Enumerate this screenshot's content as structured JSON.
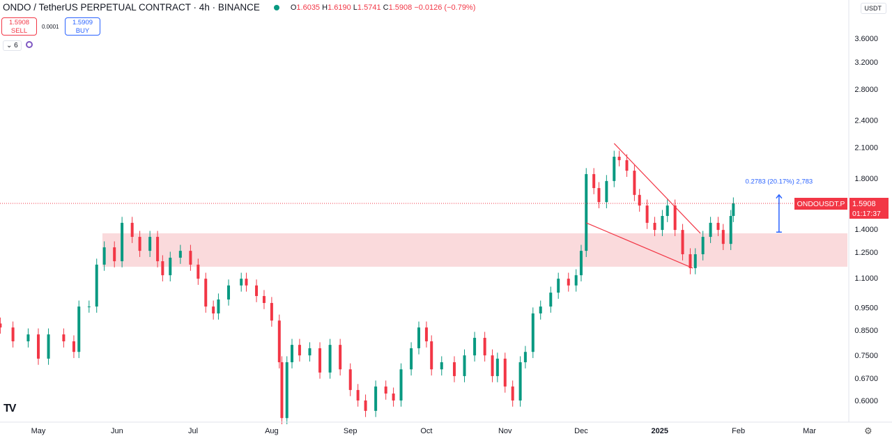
{
  "header": {
    "symbol_title": "ONDO / TetherUS PERPETUAL CONTRACT · 4h · BINANCE",
    "open_label": "O",
    "open": "1.6035",
    "high_label": "H",
    "high": "1.6190",
    "low_label": "L",
    "low": "1.5741",
    "close_label": "C",
    "close": "1.5908",
    "change": "−0.0126 (−0.79%)",
    "status_color": "#089981"
  },
  "trade": {
    "sell_price": "1.5908",
    "sell_label": "SELL",
    "spread": "0.0001",
    "buy_price": "1.5909",
    "buy_label": "BUY"
  },
  "indicators": {
    "count_label": "6"
  },
  "currency": "USDT",
  "price_tag": {
    "symbol": "ONDOUSDT.P",
    "price": "1.5908",
    "countdown": "01:17:37"
  },
  "measure_label": "0.2783 (20.17%) 2,783",
  "colors": {
    "up": "#089981",
    "down": "#f23645",
    "zone": "#f9d3d6",
    "trendline": "#f23645",
    "measure": "#2962ff"
  },
  "chart_data": {
    "type": "candlestick",
    "scale": "log",
    "grid": false,
    "ylim": [
      0.55,
      3.8
    ],
    "y_ticks": [
      "3.6000",
      "3.2000",
      "2.8000",
      "2.4000",
      "2.1000",
      "1.8000",
      "1.4000",
      "1.2500",
      "1.1000",
      "0.9500",
      "0.8500",
      "0.7500",
      "0.6700",
      "0.6000"
    ],
    "x_ticks": [
      {
        "label": "May",
        "date": "2024-05-01"
      },
      {
        "label": "Jun",
        "date": "2024-06-01"
      },
      {
        "label": "Jul",
        "date": "2024-07-01"
      },
      {
        "label": "Aug",
        "date": "2024-08-01"
      },
      {
        "label": "Sep",
        "date": "2024-09-01"
      },
      {
        "label": "Oct",
        "date": "2024-10-01"
      },
      {
        "label": "Nov",
        "date": "2024-11-01"
      },
      {
        "label": "Dec",
        "date": "2024-12-01"
      },
      {
        "label": "2025",
        "date": "2025-01-01",
        "bold": true
      },
      {
        "label": "Feb",
        "date": "2025-02-01"
      },
      {
        "label": "Mar",
        "date": "2025-03-01"
      }
    ],
    "closes": [
      [
        "2024-04-16",
        0.861
      ],
      [
        "2024-04-21",
        0.804
      ],
      [
        "2024-04-27",
        0.832
      ],
      [
        "2024-05-01",
        0.738
      ],
      [
        "2024-05-05",
        0.832
      ],
      [
        "2024-05-11",
        0.804
      ],
      [
        "2024-05-15",
        0.763
      ],
      [
        "2024-05-17",
        0.955
      ],
      [
        "2024-05-21",
        0.955
      ],
      [
        "2024-05-24",
        1.175
      ],
      [
        "2024-05-27",
        1.28
      ],
      [
        "2024-05-31",
        1.195
      ],
      [
        "2024-06-03",
        1.445
      ],
      [
        "2024-06-07",
        1.348
      ],
      [
        "2024-06-10",
        1.258
      ],
      [
        "2024-06-14",
        1.348
      ],
      [
        "2024-06-17",
        1.195
      ],
      [
        "2024-06-19",
        1.115
      ],
      [
        "2024-06-22",
        1.216
      ],
      [
        "2024-06-26",
        1.258
      ],
      [
        "2024-06-30",
        1.175
      ],
      [
        "2024-07-03",
        1.096
      ],
      [
        "2024-07-06",
        0.955
      ],
      [
        "2024-07-09",
        0.923
      ],
      [
        "2024-07-11",
        0.989
      ],
      [
        "2024-07-15",
        1.06
      ],
      [
        "2024-07-20",
        1.096
      ],
      [
        "2024-07-22",
        1.06
      ],
      [
        "2024-07-26",
        1.006
      ],
      [
        "2024-07-29",
        0.972
      ],
      [
        "2024-08-01",
        0.891
      ],
      [
        "2024-08-04",
        0.725
      ],
      [
        "2024-08-05",
        0.55
      ],
      [
        "2024-08-07",
        0.725
      ],
      [
        "2024-08-09",
        0.79
      ],
      [
        "2024-08-12",
        0.75
      ],
      [
        "2024-08-16",
        0.777
      ],
      [
        "2024-08-20",
        0.689
      ],
      [
        "2024-08-24",
        0.79
      ],
      [
        "2024-08-28",
        0.7
      ],
      [
        "2024-09-01",
        0.632
      ],
      [
        "2024-09-04",
        0.6
      ],
      [
        "2024-09-07",
        0.57
      ],
      [
        "2024-09-11",
        0.643
      ],
      [
        "2024-09-15",
        0.621
      ],
      [
        "2024-09-18",
        0.6
      ],
      [
        "2024-09-21",
        0.7
      ],
      [
        "2024-09-25",
        0.777
      ],
      [
        "2024-09-28",
        0.861
      ],
      [
        "2024-10-01",
        0.804
      ],
      [
        "2024-10-03",
        0.7
      ],
      [
        "2024-10-07",
        0.725
      ],
      [
        "2024-10-12",
        0.677
      ],
      [
        "2024-10-16",
        0.75
      ],
      [
        "2024-10-20",
        0.818
      ],
      [
        "2024-10-24",
        0.75
      ],
      [
        "2024-10-27",
        0.677
      ],
      [
        "2024-10-29",
        0.738
      ],
      [
        "2024-11-01",
        0.643
      ],
      [
        "2024-11-04",
        0.6
      ],
      [
        "2024-11-07",
        0.725
      ],
      [
        "2024-11-09",
        0.763
      ],
      [
        "2024-11-12",
        0.923
      ],
      [
        "2024-11-15",
        0.955
      ],
      [
        "2024-11-19",
        1.023
      ],
      [
        "2024-11-22",
        1.096
      ],
      [
        "2024-11-26",
        1.06
      ],
      [
        "2024-11-29",
        1.115
      ],
      [
        "2024-12-01",
        1.258
      ],
      [
        "2024-12-03",
        1.839
      ],
      [
        "2024-12-06",
        1.716
      ],
      [
        "2024-12-08",
        1.601
      ],
      [
        "2024-12-11",
        1.777
      ],
      [
        "2024-12-14",
        2.004
      ],
      [
        "2024-12-16",
        1.97
      ],
      [
        "2024-12-19",
        1.87
      ],
      [
        "2024-12-22",
        1.659
      ],
      [
        "2024-12-24",
        1.574
      ],
      [
        "2024-12-27",
        1.445
      ],
      [
        "2024-12-30",
        1.395
      ],
      [
        "2025-01-02",
        1.495
      ],
      [
        "2025-01-04",
        1.574
      ],
      [
        "2025-01-07",
        1.395
      ],
      [
        "2025-01-10",
        1.237
      ],
      [
        "2025-01-13",
        1.155
      ],
      [
        "2025-01-15",
        1.237
      ],
      [
        "2025-01-18",
        1.348
      ],
      [
        "2025-01-21",
        1.445
      ],
      [
        "2025-01-24",
        1.395
      ],
      [
        "2025-01-26",
        1.302
      ],
      [
        "2025-01-29",
        1.495
      ],
      [
        "2025-01-30",
        1.5908
      ]
    ],
    "support_zone": [
      1.163,
      1.372
    ],
    "trendlines": [
      {
        "from": [
          "2024-12-14",
          2.14
        ],
        "to": [
          "2025-01-17",
          1.372
        ]
      },
      {
        "from": [
          "2024-12-03",
          1.445
        ],
        "to": [
          "2025-01-14",
          1.155
        ]
      }
    ],
    "measure": {
      "date": "2025-02-17",
      "from": 1.38,
      "to": 1.66
    },
    "last_price": 1.5908
  }
}
